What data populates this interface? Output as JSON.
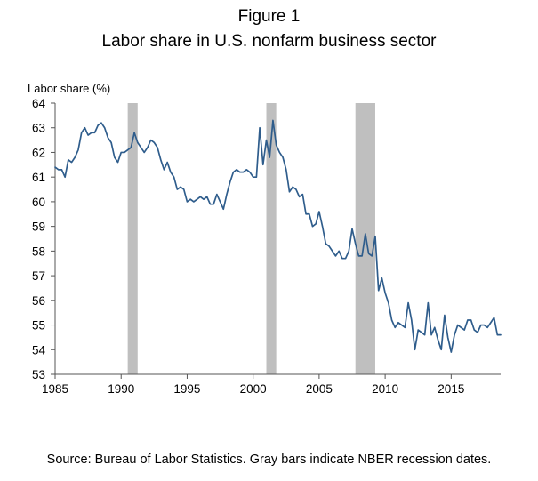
{
  "figure_label": "Figure 1",
  "source_note": "Source: Bureau of Labor Statistics. Gray bars indicate NBER recession dates.",
  "colors": {
    "line": "#2f5d8c",
    "recession": "#bfbfbf",
    "axis": "#555555"
  },
  "chart_data": {
    "type": "line",
    "title": "Labor share in U.S. nonfarm business sector",
    "xlabel": "",
    "ylabel": "Labor share (%)",
    "xlim": [
      1985,
      2018.75
    ],
    "ylim": [
      53,
      64
    ],
    "grid": false,
    "x_ticks": [
      1985,
      1990,
      1995,
      2000,
      2005,
      2010,
      2015
    ],
    "y_ticks": [
      53,
      54,
      55,
      56,
      57,
      58,
      59,
      60,
      61,
      62,
      63,
      64
    ],
    "recessions": [
      {
        "start": 1990.5,
        "end": 1991.25,
        "label": "1990-91 recession"
      },
      {
        "start": 2001.0,
        "end": 2001.75,
        "label": "2001 recession"
      },
      {
        "start": 2007.75,
        "end": 2009.25,
        "label": "2007-09 recession"
      }
    ],
    "series": [
      {
        "name": "Labor share",
        "frequency": "quarterly",
        "start": 1985.0,
        "values": [
          61.4,
          61.3,
          61.3,
          61.0,
          61.7,
          61.6,
          61.8,
          62.1,
          62.8,
          63.0,
          62.7,
          62.8,
          62.8,
          63.1,
          63.2,
          63.0,
          62.6,
          62.4,
          61.8,
          61.6,
          62.0,
          62.0,
          62.1,
          62.2,
          62.8,
          62.4,
          62.2,
          62.0,
          62.2,
          62.5,
          62.4,
          62.2,
          61.7,
          61.3,
          61.6,
          61.2,
          61.0,
          60.5,
          60.6,
          60.5,
          60.0,
          60.1,
          60.0,
          60.1,
          60.2,
          60.1,
          60.2,
          59.9,
          59.9,
          60.3,
          60.0,
          59.7,
          60.3,
          60.8,
          61.2,
          61.3,
          61.2,
          61.2,
          61.3,
          61.2,
          61.0,
          61.0,
          63.0,
          61.5,
          62.5,
          61.8,
          63.3,
          62.3,
          62.0,
          61.8,
          61.3,
          60.4,
          60.6,
          60.5,
          60.2,
          60.3,
          59.5,
          59.5,
          59.0,
          59.1,
          59.6,
          59.0,
          58.3,
          58.2,
          58.0,
          57.8,
          58.0,
          57.7,
          57.7,
          58.0,
          58.9,
          58.3,
          57.8,
          57.8,
          58.7,
          57.9,
          57.8,
          58.6,
          56.4,
          56.9,
          56.3,
          55.9,
          55.2,
          54.9,
          55.1,
          55.0,
          54.9,
          55.9,
          55.2,
          54.0,
          54.8,
          54.7,
          54.6,
          55.9,
          54.6,
          54.9,
          54.4,
          54.0,
          55.4,
          54.5,
          53.9,
          54.6,
          55.0,
          54.9,
          54.8,
          55.2,
          55.2,
          54.8,
          54.7,
          55.0,
          55.0,
          54.9,
          55.1,
          55.3,
          54.6,
          54.6
        ]
      }
    ]
  }
}
